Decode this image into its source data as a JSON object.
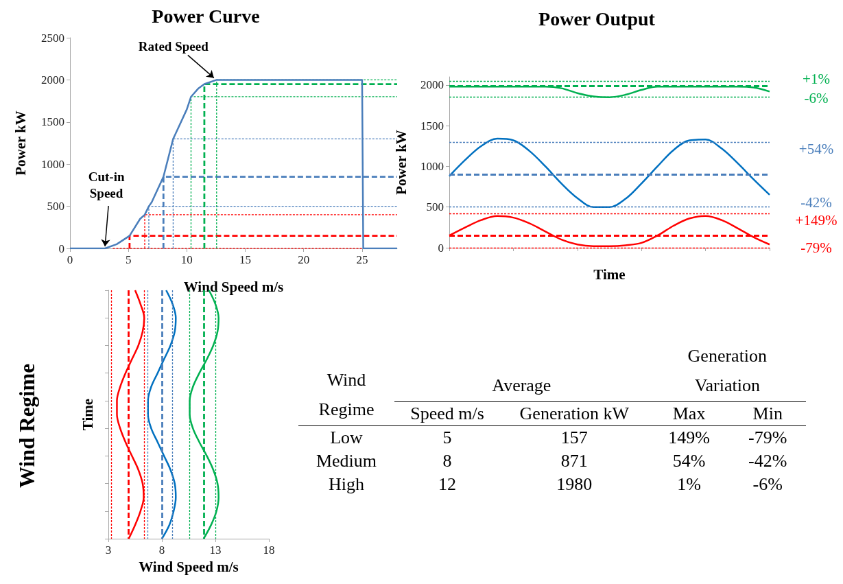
{
  "chart_data": [
    {
      "type": "line",
      "title": "Power Curve",
      "xlabel": "Wind Speed m/s",
      "ylabel": "Power kW",
      "series": [
        {
          "color": "#4a7ebb",
          "line_style": "solid",
          "x": [
            0,
            3,
            4,
            5.1,
            6,
            6.4,
            6.75,
            7,
            8,
            8.83,
            9,
            10,
            10.36,
            11,
            11.5,
            12.55,
            25,
            25.1,
            28
          ],
          "values": [
            0,
            0,
            50,
            150,
            350,
            400,
            500,
            550,
            850,
            1300,
            1350,
            1650,
            1800,
            1900,
            1950,
            2000,
            2000,
            0,
            0
          ]
        },
        {
          "color": "#ff0000",
          "line_style": "dotted",
          "x": [
            3.67,
            3.67,
            28
          ],
          "values": [
            0,
            0,
            0
          ]
        },
        {
          "color": "#ff0000",
          "line_style": "dashed",
          "x": [
            5.1,
            5.1,
            28
          ],
          "values": [
            0,
            150,
            150
          ]
        },
        {
          "color": "#ff0000",
          "line_style": "dotted",
          "x": [
            6.4,
            6.4,
            28
          ],
          "values": [
            0,
            400,
            400
          ]
        },
        {
          "color": "#4a7ebb",
          "line_style": "dotted",
          "x": [
            6.75,
            6.75,
            28
          ],
          "values": [
            0,
            500,
            500
          ]
        },
        {
          "color": "#4a7ebb",
          "line_style": "dashed",
          "x": [
            8,
            8,
            28
          ],
          "values": [
            0,
            850,
            850
          ]
        },
        {
          "color": "#4a7ebb",
          "line_style": "dotted",
          "x": [
            8.83,
            8.83,
            28
          ],
          "values": [
            0,
            1300,
            1300
          ]
        },
        {
          "color": "#00b050",
          "line_style": "dotted",
          "x": [
            10.36,
            10.36,
            28
          ],
          "values": [
            0,
            1800,
            1800
          ]
        },
        {
          "color": "#00b050",
          "line_style": "dashed",
          "x": [
            11.5,
            11.5,
            28
          ],
          "values": [
            0,
            1950,
            1950
          ]
        },
        {
          "color": "#00b050",
          "line_style": "dotted",
          "x": [
            12.55,
            12.55,
            28
          ],
          "values": [
            0,
            2000,
            2000
          ]
        }
      ],
      "xlim": [
        0,
        28
      ],
      "xticks": [
        0,
        5,
        10,
        15,
        20,
        25
      ],
      "ylim": [
        0,
        2500
      ],
      "yticks": [
        0,
        500,
        1000,
        1500,
        2000,
        2500
      ],
      "annotations": [
        {
          "text": "Cut-in Speed",
          "x": 3,
          "y": 0
        },
        {
          "text": "Rated Speed",
          "x": 12.55,
          "y": 2000
        }
      ]
    },
    {
      "type": "line",
      "title": "Power Output",
      "xlabel": "Time",
      "ylabel": "Power kW",
      "tick_labels": "y",
      "categories": [
        null,
        null,
        null,
        null,
        null,
        null,
        null,
        null,
        null,
        null,
        null,
        null,
        null,
        null,
        null,
        null,
        null,
        null,
        null,
        null,
        null
      ],
      "series": [
        {
          "color": "#00b050",
          "values": [
            1980,
            1980,
            1980,
            1980,
            1980,
            1980,
            1980,
            1960,
            1900,
            1860,
            1850,
            1880,
            1940,
            1980,
            1980,
            1980,
            1980,
            1980,
            1980,
            1970,
            1920
          ]
        },
        {
          "color": "#0070c0",
          "values": [
            880,
            1080,
            1250,
            1340,
            1320,
            1190,
            1000,
            790,
            610,
            500,
            500,
            600,
            790,
            1000,
            1200,
            1320,
            1330,
            1220,
            1040,
            840,
            650
          ]
        },
        {
          "color": "#ff0000",
          "values": [
            150,
            250,
            340,
            390,
            370,
            300,
            200,
            100,
            40,
            20,
            20,
            30,
            60,
            150,
            270,
            360,
            390,
            340,
            240,
            130,
            40
          ]
        }
      ],
      "ylim": [
        0,
        2100
      ],
      "yticks": [
        0,
        500,
        1000,
        1500,
        2000
      ],
      "annotations": [
        "+1%",
        "-6%",
        "+54%",
        "-42%",
        "+149%",
        "-79%"
      ],
      "ref_lines": [
        {
          "axis": "y",
          "value": 2050,
          "color": "#00b050",
          "line_style": "dotted"
        },
        {
          "axis": "y",
          "value": 1990,
          "color": "#00b050",
          "line_style": "dashed"
        },
        {
          "axis": "y",
          "value": 1850,
          "color": "#00b050",
          "line_style": "dotted"
        },
        {
          "axis": "y",
          "value": 1300,
          "color": "#4a7ebb",
          "line_style": "dotted"
        },
        {
          "axis": "y",
          "value": 900,
          "color": "#4a7ebb",
          "line_style": "dashed"
        },
        {
          "axis": "y",
          "value": 500,
          "color": "#4a7ebb",
          "line_style": "dotted"
        },
        {
          "axis": "y",
          "value": 420,
          "color": "#ff0000",
          "line_style": "dotted"
        },
        {
          "axis": "y",
          "value": 150,
          "color": "#ff0000",
          "line_style": "dashed"
        },
        {
          "axis": "y",
          "value": 0,
          "color": "#ff0000",
          "line_style": "dotted"
        }
      ]
    },
    {
      "type": "line",
      "title": "Wind Regime",
      "orientation": "horizontal",
      "xlabel": "Wind Speed m/s",
      "ylabel": "Time",
      "tick_labels": "x",
      "categories": [
        null,
        null,
        null,
        null,
        null,
        null,
        null,
        null,
        null,
        null,
        null,
        null,
        null,
        null,
        null,
        null,
        null,
        null,
        null
      ],
      "series": [
        {
          "color": "#ff0000",
          "values": [
            5.5,
            6.0,
            6.35,
            6.2,
            5.8,
            5.2,
            4.6,
            4.1,
            3.8,
            3.8,
            4.1,
            4.6,
            5.2,
            5.8,
            6.2,
            6.3,
            6.0,
            5.5,
            4.9
          ]
        },
        {
          "color": "#0070c0",
          "values": [
            8.4,
            9.0,
            9.3,
            9.2,
            8.8,
            8.2,
            7.6,
            7.0,
            6.7,
            6.7,
            7.0,
            7.6,
            8.2,
            8.8,
            9.2,
            9.3,
            9.1,
            8.7,
            8.0
          ]
        },
        {
          "color": "#00b050",
          "values": [
            12.4,
            13.0,
            13.3,
            13.2,
            12.8,
            12.2,
            11.5,
            10.9,
            10.6,
            10.6,
            10.9,
            11.5,
            12.2,
            12.8,
            13.2,
            13.3,
            13.1,
            12.6,
            11.9
          ]
        }
      ],
      "xlim": [
        3,
        18
      ],
      "xticks": [
        3,
        8,
        13,
        18
      ],
      "ref_lines": [
        {
          "axis": "x",
          "value": 3.3,
          "color": "#ff0000",
          "line_style": "dotted"
        },
        {
          "axis": "x",
          "value": 4.9,
          "color": "#ff0000",
          "line_style": "dashed"
        },
        {
          "axis": "x",
          "value": 6.35,
          "color": "#ff0000",
          "line_style": "dotted"
        },
        {
          "axis": "x",
          "value": 6.65,
          "color": "#4a7ebb",
          "line_style": "dotted"
        },
        {
          "axis": "x",
          "value": 8,
          "color": "#4a7ebb",
          "line_style": "dashed"
        },
        {
          "axis": "x",
          "value": 9,
          "color": "#4a7ebb",
          "line_style": "dotted"
        },
        {
          "axis": "x",
          "value": 10.6,
          "color": "#00b050",
          "line_style": "dotted"
        },
        {
          "axis": "x",
          "value": 11.9,
          "color": "#00b050",
          "line_style": "dashed"
        },
        {
          "axis": "x",
          "value": 13,
          "color": "#00b050",
          "line_style": "dotted"
        }
      ]
    },
    {
      "type": "other",
      "ylabel": "Wind Regime",
      "categories": [
        "Low",
        "Medium",
        "High"
      ],
      "annotations": [
        "Average",
        "Generation Variation"
      ],
      "data_labels": true,
      "series": [
        {
          "name": "Speed m/s",
          "values": [
            5,
            8,
            12
          ]
        },
        {
          "name": "Generation kW",
          "values": [
            157,
            871,
            1980
          ]
        },
        {
          "name": "Max",
          "values": [
            149,
            54,
            1
          ],
          "value_labels": [
            "149%",
            "54%",
            "1%"
          ]
        },
        {
          "name": "Min",
          "values": [
            -79,
            -42,
            -6
          ],
          "value_labels": [
            "-79%",
            "-42%",
            "-6%"
          ]
        }
      ]
    }
  ]
}
